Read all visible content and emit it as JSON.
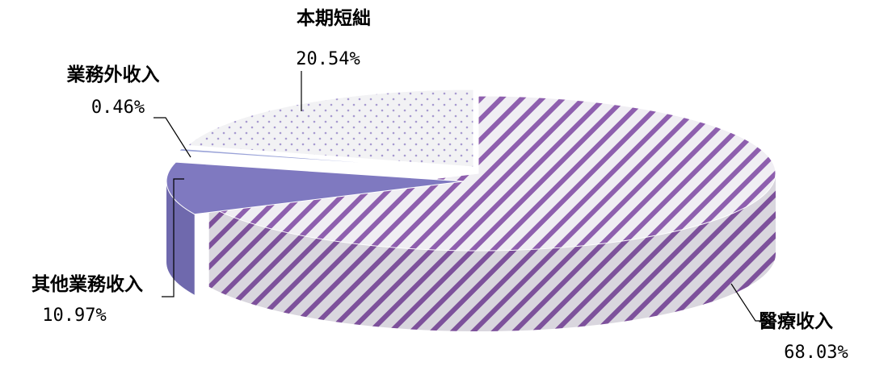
{
  "chart_data": {
    "type": "pie",
    "style": "3d-exploded",
    "title": "",
    "slices": [
      {
        "label": "醫療收入",
        "value": 68.03,
        "percent_label": "68.03%",
        "color": "#8e5fae",
        "pattern": "diagonal-stripes"
      },
      {
        "label": "其他業務收入",
        "value": 10.97,
        "percent_label": "10.97%",
        "color": "#7f79c0",
        "pattern": "solid"
      },
      {
        "label": "業務外收入",
        "value": 0.46,
        "percent_label": "0.46%",
        "color": "#9aa3d8",
        "pattern": "solid"
      },
      {
        "label": "本期短絀",
        "value": 20.54,
        "percent_label": "20.54%",
        "color": "#a79ad0",
        "pattern": "dots"
      }
    ]
  },
  "colors": {
    "stripe_dark": "#8e5fae",
    "stripe_light": "#f0eef3",
    "dot_bg": "#f2f2f4",
    "dot": "#a79ad0",
    "solid_slice": "#7f79c0",
    "solid_slice_side": "#6f69ad"
  }
}
